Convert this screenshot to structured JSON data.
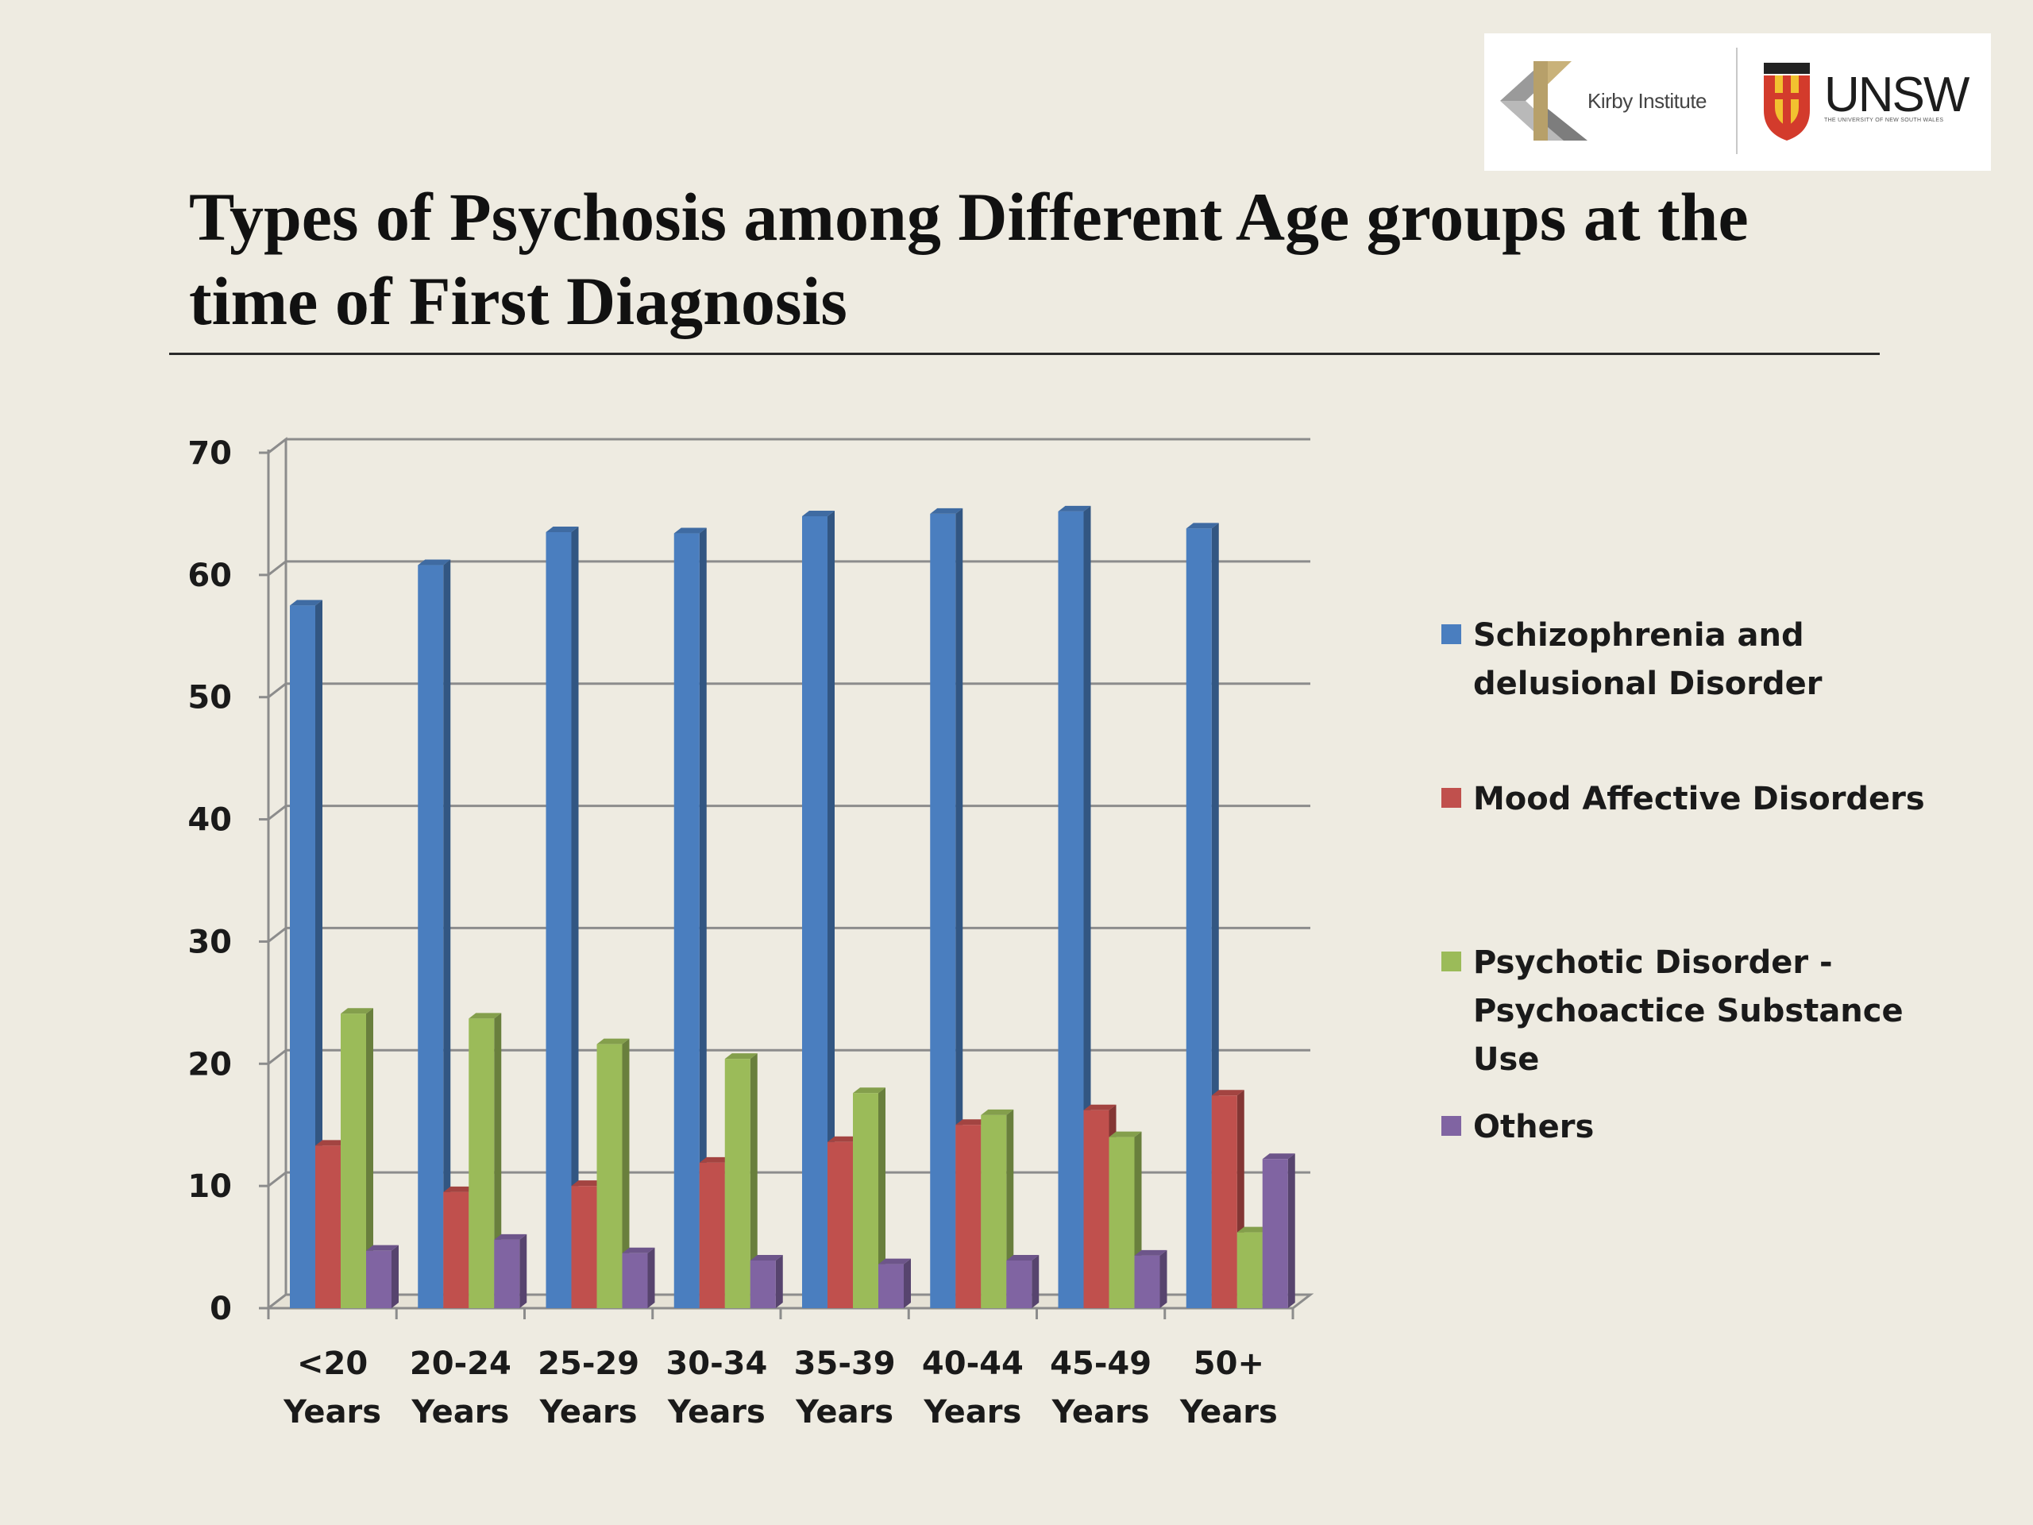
{
  "logo": {
    "kirby": "Kirby Institute",
    "unsw": "UNSW",
    "unsw_sub": "THE UNIVERSITY OF NEW SOUTH WALES"
  },
  "chart_data": {
    "type": "bar",
    "title": "Types of Psychosis among Different Age groups at the time of First Diagnosis",
    "xlabel": "",
    "ylabel": "",
    "ylim": [
      0,
      70
    ],
    "yticks": [
      0,
      10,
      20,
      30,
      40,
      50,
      60,
      70
    ],
    "grid": true,
    "legend_position": "right",
    "categories": [
      [
        "<20",
        "Years"
      ],
      [
        "20-24",
        "Years"
      ],
      [
        "25-29",
        "Years"
      ],
      [
        "30-34",
        "Years"
      ],
      [
        "35-39",
        "Years"
      ],
      [
        "40-44",
        "Years"
      ],
      [
        "45-49",
        "Years"
      ],
      [
        "50+",
        "Years"
      ]
    ],
    "series": [
      {
        "name": "Schizophrenia and delusional Disorder",
        "color": "#4a7ebf",
        "values": [
          57.5,
          60.8,
          63.5,
          63.4,
          64.8,
          65.0,
          65.2,
          63.8
        ]
      },
      {
        "name": "Mood Affective Disorders",
        "color": "#c0504d",
        "values": [
          13.3,
          9.5,
          10.0,
          11.9,
          13.6,
          15.0,
          16.2,
          17.4
        ]
      },
      {
        "name": "Psychotic Disorder - Psychoactice Substance Use",
        "color": "#9bbb59",
        "values": [
          24.1,
          23.7,
          21.6,
          20.4,
          17.6,
          15.8,
          14.0,
          6.2
        ]
      },
      {
        "name": "Others",
        "color": "#8064a2",
        "values": [
          4.7,
          5.6,
          4.5,
          3.9,
          3.6,
          3.9,
          4.3,
          12.2
        ]
      }
    ],
    "legend_labels": [
      [
        "Schizophrenia and",
        "delusional Disorder"
      ],
      [
        "Mood Affective Disorders"
      ],
      [
        "Psychotic Disorder -",
        "Psychoactice Substance",
        "Use"
      ],
      [
        "Others"
      ]
    ]
  }
}
